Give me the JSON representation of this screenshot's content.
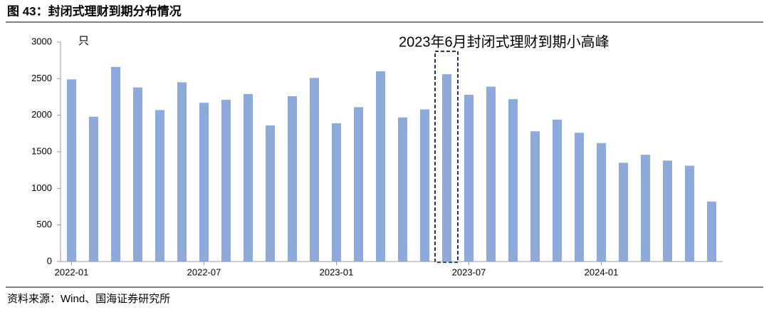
{
  "chart_data": {
    "type": "bar",
    "title": "图 43：封闭式理财到期分布情况",
    "y_label": "只",
    "annotation": "2023年6月封闭式理财到期小高峰",
    "source": "资料来源：Wind、国海证券研究所",
    "categories": [
      "2022-01",
      null,
      null,
      null,
      null,
      null,
      "2022-07",
      null,
      null,
      null,
      null,
      null,
      "2023-01",
      null,
      null,
      null,
      null,
      null,
      "2023-07",
      null,
      null,
      null,
      null,
      null,
      "2024-01",
      null,
      null,
      null,
      null,
      null
    ],
    "values": [
      2490,
      1980,
      2660,
      2380,
      2070,
      2450,
      2170,
      2210,
      2290,
      1860,
      2260,
      2510,
      1890,
      2110,
      2600,
      1970,
      2080,
      2560,
      2280,
      2390,
      2220,
      1780,
      1940,
      1760,
      1620,
      1350,
      1460,
      1380,
      1310,
      820
    ],
    "color": "#8eaadb",
    "ylim": [
      0,
      3000
    ],
    "yticks": [
      0,
      500,
      1000,
      1500,
      2000,
      2500,
      3000
    ]
  }
}
